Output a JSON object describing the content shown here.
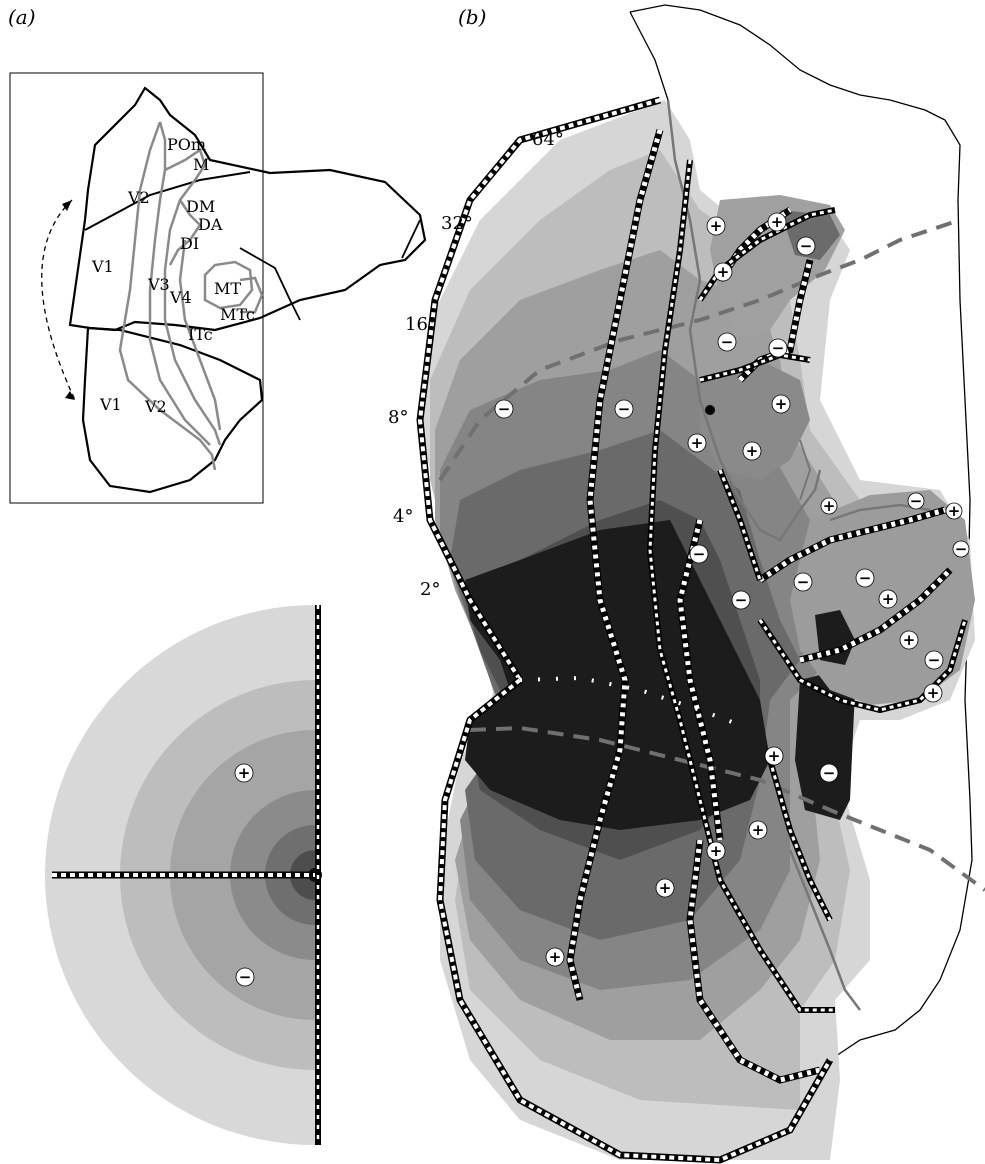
{
  "panels": {
    "a": "(a)",
    "b": "(b)"
  },
  "areas": {
    "pom": "POm",
    "m": "M",
    "v2_top": "V2",
    "dm": "DM",
    "da": "DA",
    "dl": "DI",
    "v1_top": "V1",
    "v3": "V3",
    "v4": "V4",
    "mt": "MT",
    "mtc": "MTc",
    "itc": "ITc",
    "v1_bottom": "V1",
    "v2_bottom": "V2"
  },
  "eccentricity": {
    "e64": "64°",
    "e32": "32°",
    "e16": "16°",
    "e8": "8°",
    "e4": "4°",
    "e2": "2°"
  },
  "signs": {
    "plus": "+",
    "minus": "−"
  },
  "colors": {
    "dark": "#1c1c1c",
    "mid_dark": "#4a4a4a",
    "mid": "#707070",
    "mid_light": "#959595",
    "light": "#b8b8b8",
    "lightest": "#d6d6d6",
    "boundary_dashed": "#6e6e6e"
  }
}
